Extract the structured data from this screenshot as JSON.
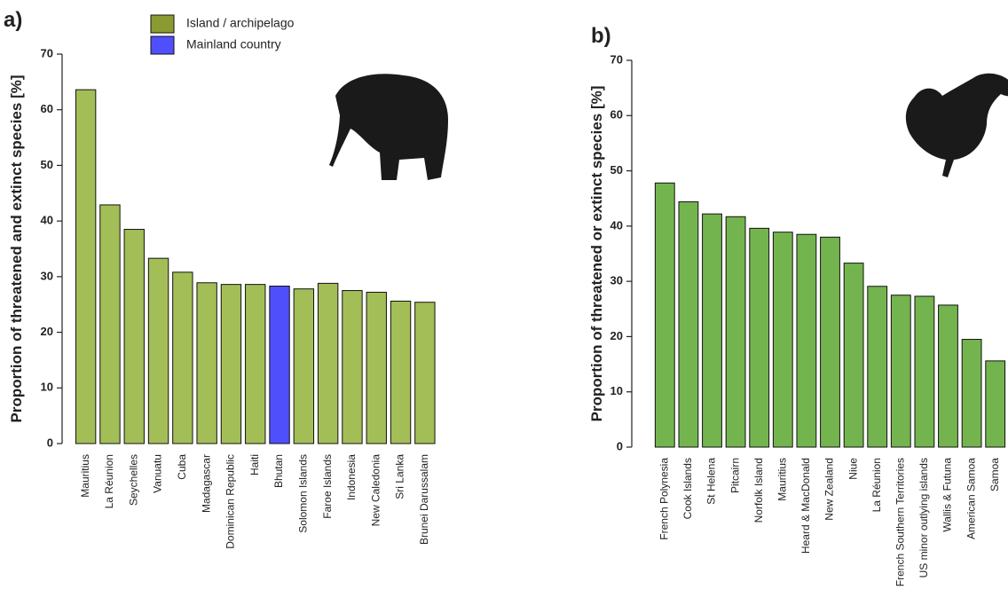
{
  "chart_data": [
    {
      "type": "bar",
      "label": "a)",
      "ylabel": "Proportion of threatened and extinct species [%]",
      "categories": [
        "Mauritius",
        "La Réunion",
        "Seychelles",
        "Vanuatu",
        "Cuba",
        "Madagascar",
        "Dominican Republic",
        "Haiti",
        "Bhutan",
        "Solomon Islands",
        "Faroe Islands",
        "Indonesia",
        "New Caledonia",
        "Sri Lanka",
        "Brunei Darussalam"
      ],
      "values": [
        63.6,
        42.9,
        38.5,
        33.3,
        30.8,
        28.9,
        28.6,
        28.6,
        28.3,
        27.8,
        28.8,
        27.5,
        27.2,
        25.6,
        25.4
      ],
      "colors": [
        "#a3be57",
        "#a3be57",
        "#a3be57",
        "#a3be57",
        "#a3be57",
        "#a3be57",
        "#a3be57",
        "#a3be57",
        "#4f4ffb",
        "#a3be57",
        "#a3be57",
        "#a3be57",
        "#a3be57",
        "#a3be57",
        "#a3be57"
      ],
      "legend": [
        {
          "name": "Island / archipelago",
          "color": "#8b9b31"
        },
        {
          "name": "Mainland country",
          "color": "#4f4ffb"
        }
      ],
      "ylim": [
        0,
        70
      ],
      "yticks": [
        0,
        10,
        20,
        30,
        40,
        50,
        60,
        70
      ]
    },
    {
      "type": "bar",
      "label": "b)",
      "ylabel": "Proportion of threatened or extinct species [%]",
      "categories": [
        "French Polynesia",
        "Cook Islands",
        "St Helena",
        "Pitcairn",
        "Norfolk Island",
        "Mauritius",
        "Heard & MacDonald",
        "New Zealand",
        "Niue",
        "La Réunion",
        "French Southern Territories",
        "US minor outlying islands",
        "Wallis & Futuna",
        "American Samoa",
        "Samoa"
      ],
      "values": [
        47.8,
        44.4,
        42.2,
        41.7,
        39.6,
        38.9,
        38.5,
        38.0,
        33.3,
        29.1,
        27.5,
        27.3,
        25.7,
        19.5,
        15.6
      ],
      "color": "#74b44e",
      "ylim": [
        0,
        70
      ],
      "yticks": [
        0,
        10,
        20,
        30,
        40,
        50,
        60,
        70
      ]
    }
  ]
}
